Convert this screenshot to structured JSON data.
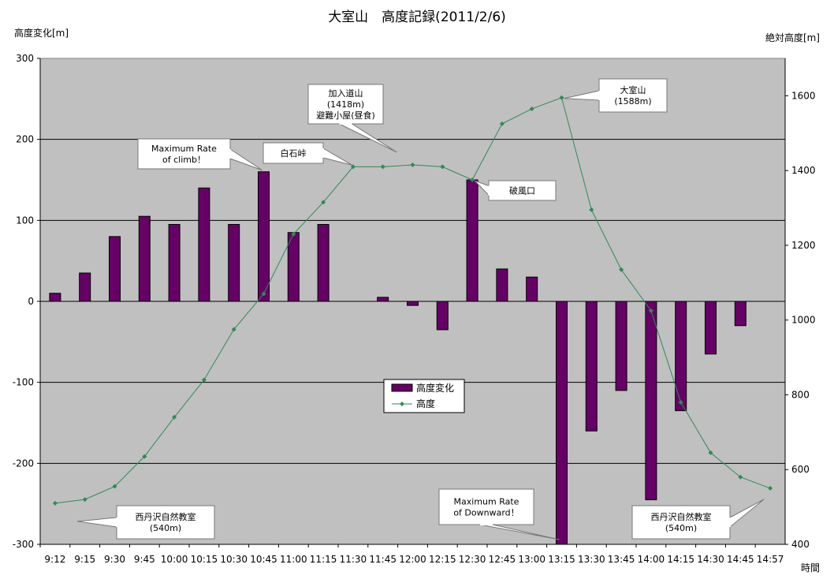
{
  "chart_data": {
    "type": "bar+line",
    "title": "大室山　高度記録(2011/2/6)",
    "ylabel_left": "高度変化[m]",
    "ylabel_right": "絶対高度[m]",
    "xlabel": "時間",
    "ylim_left": [
      -300,
      300
    ],
    "ylim_right": [
      400,
      1700
    ],
    "yticks_left": [
      -300,
      -200,
      -100,
      0,
      100,
      200,
      300
    ],
    "yticks_right": [
      400,
      600,
      800,
      1000,
      1200,
      1400,
      1600
    ],
    "grid": true,
    "legend_position": "center",
    "colors": {
      "bar": "#660066",
      "line": "#2e8b57",
      "plot_bg": "#c0c0c0"
    },
    "categories": [
      "9:12",
      "9:15",
      "9:30",
      "9:45",
      "10:00",
      "10:15",
      "10:30",
      "10:45",
      "11:00",
      "11:15",
      "11:30",
      "11:45",
      "12:00",
      "12:15",
      "12:30",
      "12:45",
      "13:00",
      "13:15",
      "13:30",
      "13:45",
      "14:00",
      "14:15",
      "14:30",
      "14:45",
      "14:57"
    ],
    "series": [
      {
        "name": "高度変化",
        "kind": "bar",
        "values": [
          10,
          35,
          80,
          105,
          95,
          140,
          95,
          160,
          85,
          95,
          0,
          5,
          -5,
          -35,
          150,
          40,
          30,
          -300,
          -160,
          -110,
          -245,
          -135,
          -65,
          -30,
          0
        ]
      },
      {
        "name": "高度",
        "kind": "line",
        "values": [
          510,
          520,
          555,
          635,
          740,
          840,
          975,
          1070,
          1230,
          1315,
          1410,
          1410,
          1415,
          1410,
          1375,
          1525,
          1565,
          1595,
          1295,
          1135,
          1025,
          780,
          645,
          580,
          550
        ]
      }
    ],
    "annotations": [
      {
        "lines": [
          "Maximum Rate",
          "of climb！"
        ],
        "target_index": 7
      },
      {
        "lines": [
          "白石峠"
        ],
        "target_index": 10
      },
      {
        "lines": [
          "加入道山",
          "(1418m)",
          "避難小屋(昼食)"
        ],
        "target_index": 12
      },
      {
        "lines": [
          "大室山",
          "(1588m)"
        ],
        "target_index": 17
      },
      {
        "lines": [
          "破風口"
        ],
        "target_index": 14
      },
      {
        "lines": [
          "Maximum Rate",
          "of Downward！"
        ],
        "target_index": 17
      },
      {
        "lines": [
          "西丹沢自然教室",
          "(540m)"
        ],
        "target_index": 0
      },
      {
        "lines": [
          "西丹沢自然教室",
          "(540m)"
        ],
        "target_index": 24
      }
    ]
  }
}
